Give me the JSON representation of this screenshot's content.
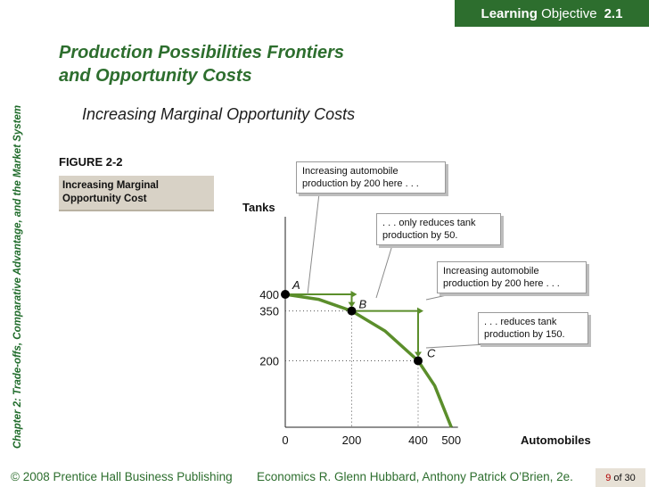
{
  "badge": {
    "bold": "Learning",
    "rest": "Objective",
    "number": "2.1"
  },
  "side_text": "Chapter 2:  Trade-offs, Comparative Advantage, and the Market System",
  "title_line1": "Production Possibilities Frontiers",
  "title_line2": "and Opportunity Costs",
  "subtitle": "Increasing Marginal Opportunity Costs",
  "figure_label": "FIGURE 2-2",
  "figure_caption_line1": "Increasing Marginal",
  "figure_caption_line2": "Opportunity Cost",
  "callouts": {
    "c1_line1": "Increasing automobile",
    "c1_line2": "production by 200 here . . .",
    "c2_line1": ". . . only reduces tank",
    "c2_line2": "production by 50.",
    "c3_line1": "Increasing automobile",
    "c3_line2": "production by 200 here . . .",
    "c4_line1": ". . . reduces tank",
    "c4_line2": "production by 150."
  },
  "footer": {
    "left": "© 2008 Prentice Hall Business Publishing",
    "econ": "Economics  R. Glenn Hubbard, Anthony Patrick O’Brien, 2e.",
    "page_current": "9",
    "page_rest": "of 30"
  },
  "colors": {
    "curve": "#5b8e2b",
    "brand": "#2d6e2e",
    "dots": "#000000"
  },
  "chart_data": {
    "type": "line",
    "title": "",
    "xlabel": "Automobiles",
    "ylabel": "Tanks",
    "xlim": [
      0,
      520
    ],
    "ylim": [
      0,
      500
    ],
    "x_ticks": [
      0,
      200,
      400,
      500
    ],
    "y_ticks": [
      200,
      350,
      400
    ],
    "x_tick_labels": [
      "0",
      "200",
      "400",
      "500"
    ],
    "y_tick_labels": [
      "200",
      "350",
      "400"
    ],
    "curve": {
      "x": [
        0,
        100,
        200,
        300,
        400,
        450,
        500
      ],
      "y": [
        400,
        385,
        350,
        290,
        200,
        125,
        0
      ]
    },
    "points": [
      {
        "label": "A",
        "x": 0,
        "y": 400
      },
      {
        "label": "B",
        "x": 200,
        "y": 350
      },
      {
        "label": "C",
        "x": 400,
        "y": 200
      }
    ],
    "grid": false
  }
}
